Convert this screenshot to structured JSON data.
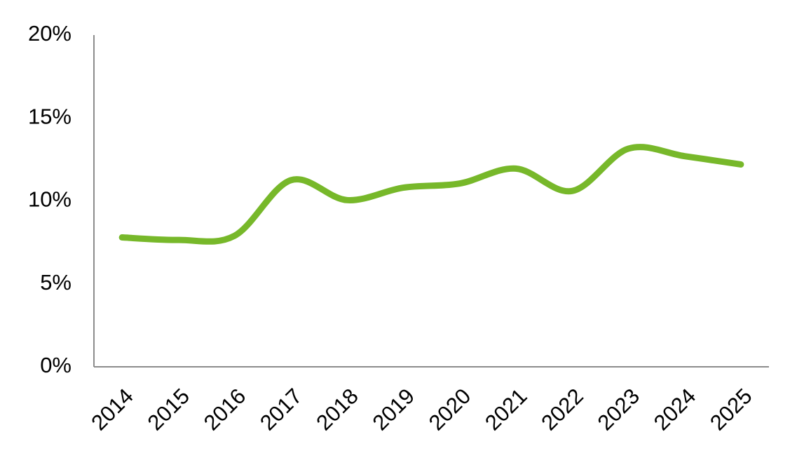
{
  "chart_data": {
    "type": "line",
    "categories": [
      "2014",
      "2015",
      "2016",
      "2017",
      "2018",
      "2019",
      "2020",
      "2021",
      "2022",
      "2023",
      "2024",
      "2025"
    ],
    "series": [
      {
        "color": "#77b82a",
        "values": [
          7.8,
          7.65,
          7.9,
          11.25,
          10.05,
          10.8,
          11.05,
          11.95,
          10.6,
          13.15,
          12.7,
          12.2
        ]
      }
    ],
    "ylim": [
      0,
      20
    ],
    "yticks": [
      {
        "value": 0,
        "label": "0%"
      },
      {
        "value": 5,
        "label": "5%"
      },
      {
        "value": 10,
        "label": "10%"
      },
      {
        "value": 15,
        "label": "15%"
      },
      {
        "value": 20,
        "label": "20%"
      }
    ],
    "smooth": true
  }
}
